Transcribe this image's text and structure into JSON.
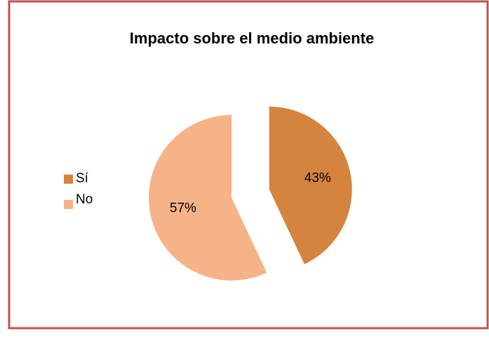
{
  "chart_data": {
    "type": "pie",
    "title": "Impacto sobre el medio ambiente",
    "categories": [
      "Sí",
      "No"
    ],
    "values": [
      43,
      57
    ],
    "value_labels": [
      "43%",
      "57%"
    ],
    "colors": [
      "#d5843f",
      "#f6b388"
    ],
    "legend": "left"
  }
}
